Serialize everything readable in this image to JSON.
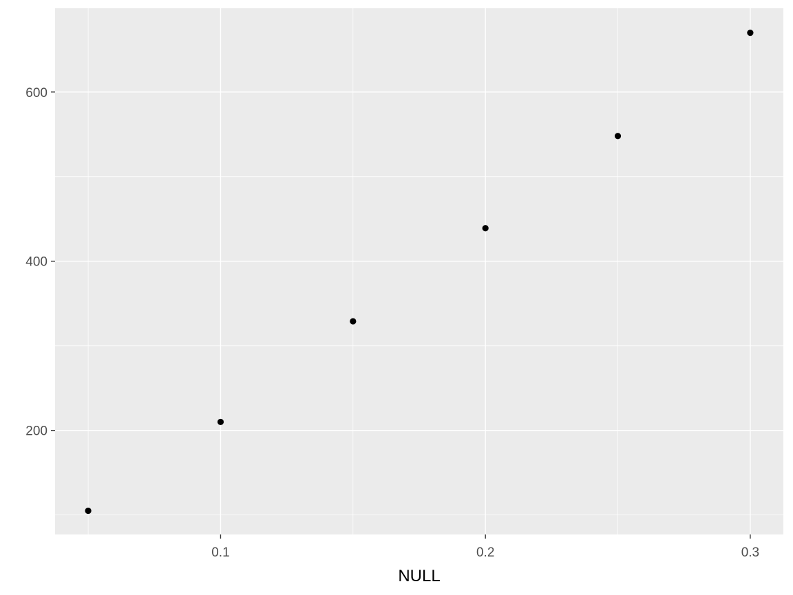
{
  "chart_data": {
    "type": "scatter",
    "title": "",
    "xlabel": "NULL",
    "ylabel": "",
    "x": [
      0.05,
      0.1,
      0.15,
      0.2,
      0.25,
      0.3
    ],
    "y": [
      105,
      210,
      329,
      439,
      548,
      670
    ],
    "xlim": [
      0.0375,
      0.3125
    ],
    "ylim": [
      77,
      699
    ],
    "x_ticks": [
      0.1,
      0.2,
      0.3
    ],
    "x_tick_labels": [
      "0.1",
      "0.2",
      "0.3"
    ],
    "y_ticks": [
      200,
      400,
      600
    ],
    "y_tick_labels": [
      "200",
      "400",
      "600"
    ],
    "x_minor_ticks": [
      0.05,
      0.15,
      0.25
    ],
    "y_minor_ticks": [
      100,
      300,
      500
    ],
    "grid": true,
    "panel_color": "#ebebeb",
    "point_color": "#000000"
  }
}
